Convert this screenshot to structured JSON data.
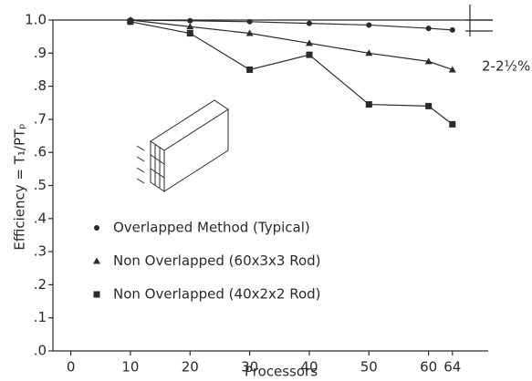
{
  "chart_data": {
    "type": "line",
    "x_label": "Processors",
    "y_label": "Efficiency = T₁/PTₚ",
    "annotation": "2-2½%",
    "xlim": [
      -3,
      70
    ],
    "ylim": [
      0,
      1.0
    ],
    "xticks": [
      0,
      10,
      20,
      30,
      40,
      50,
      60,
      64
    ],
    "yticks": [
      {
        "value": 0,
        "label": ".0"
      },
      {
        "value": 0.1,
        "label": ".1"
      },
      {
        "value": 0.2,
        "label": ".2"
      },
      {
        "value": 0.3,
        "label": ".3"
      },
      {
        "value": 0.4,
        "label": ".4"
      },
      {
        "value": 0.5,
        "label": ".5"
      },
      {
        "value": 0.6,
        "label": ".6"
      },
      {
        "value": 0.7,
        "label": ".7"
      },
      {
        "value": 0.8,
        "label": ".8"
      },
      {
        "value": 0.9,
        "label": ".9"
      },
      {
        "value": 1.0,
        "label": "1.0"
      }
    ],
    "x": [
      10,
      20,
      30,
      40,
      50,
      60,
      64
    ],
    "series": [
      {
        "name": "Overlapped Method (Typical)",
        "marker": "circle",
        "color": "#2a2a2a",
        "values": [
          1.0,
          0.998,
          0.995,
          0.99,
          0.985,
          0.975,
          0.97
        ]
      },
      {
        "name": "Non Overlapped (60x3x3 Rod)",
        "marker": "triangle",
        "color": "#2a2a2a",
        "values": [
          1.0,
          0.98,
          0.96,
          0.93,
          0.9,
          0.875,
          0.85
        ]
      },
      {
        "name": "Non Overlapped (40x2x2 Rod)",
        "marker": "square",
        "color": "#2a2a2a",
        "values": [
          0.995,
          0.96,
          0.85,
          0.895,
          0.745,
          0.74,
          0.685
        ]
      }
    ]
  }
}
